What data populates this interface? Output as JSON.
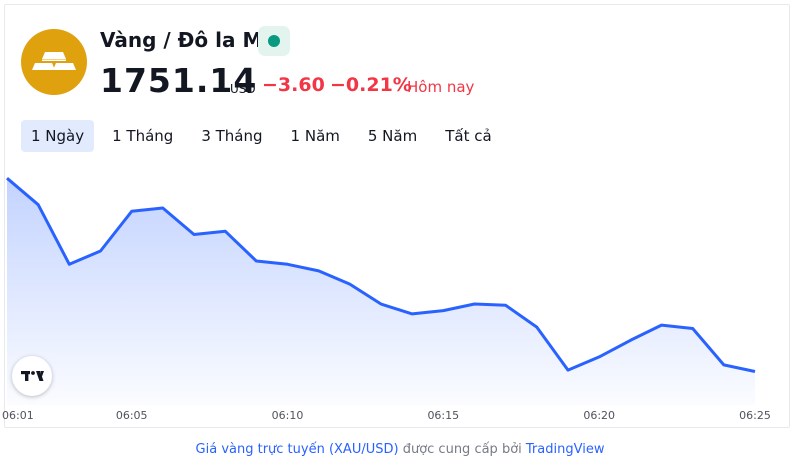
{
  "header": {
    "title": "Vàng / Đô la Mỹ",
    "price": "1751.14",
    "currency": "USD",
    "change": "−3.60",
    "change_percent": "−0.21%",
    "period_label": "Hôm nay"
  },
  "colors": {
    "logo_bg": "#e0a10f",
    "status_dot": "#089981",
    "negative": "#f23645",
    "line": "#2962ff",
    "tab_active_bg": "#e2ebfd"
  },
  "icons": {
    "logo": "gold-bars-icon",
    "status": "market-open-dot-icon",
    "badge": "tradingview-logo-icon"
  },
  "tabs": [
    {
      "label": "1 Ngày",
      "active": true
    },
    {
      "label": "1 Tháng",
      "active": false
    },
    {
      "label": "3 Tháng",
      "active": false
    },
    {
      "label": "1 Năm",
      "active": false
    },
    {
      "label": "5 Năm",
      "active": false
    },
    {
      "label": "Tất cả",
      "active": false
    }
  ],
  "chart_data": {
    "type": "area",
    "x": [
      "06:01",
      "06:02",
      "06:03",
      "06:04",
      "06:05",
      "06:06",
      "06:07",
      "06:08",
      "06:09",
      "06:10",
      "06:11",
      "06:12",
      "06:13",
      "06:14",
      "06:15",
      "06:16",
      "06:17",
      "06:18",
      "06:19",
      "06:20",
      "06:21",
      "06:22",
      "06:23",
      "06:24",
      "06:25"
    ],
    "values": [
      1754.2,
      1753.8,
      1752.9,
      1753.1,
      1753.7,
      1753.75,
      1753.35,
      1753.4,
      1752.95,
      1752.9,
      1752.8,
      1752.6,
      1752.3,
      1752.15,
      1752.2,
      1752.3,
      1752.28,
      1751.95,
      1751.3,
      1751.5,
      1751.75,
      1751.98,
      1751.93,
      1751.38,
      1751.28
    ],
    "xticks": [
      "06:01",
      "06:05",
      "06:10",
      "06:15",
      "06:20",
      "06:25"
    ],
    "ylim": [
      1751.0,
      1754.4
    ],
    "legend": "none",
    "grid": false
  },
  "footer": {
    "link_text": "Giá vàng trực tuyến (XAU/USD)",
    "middle_text": " được cung cấp bởi ",
    "provider": "TradingView"
  }
}
